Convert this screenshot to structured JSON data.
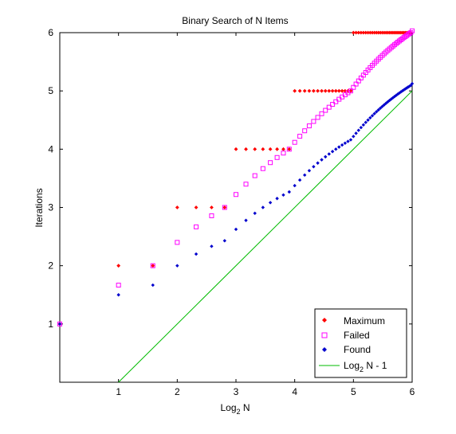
{
  "chart_data": {
    "type": "scatter",
    "title": "Binary Search of N Items",
    "xlabel_main": "Log",
    "xlabel_sub": "2",
    "xlabel_tail": " N",
    "ylabel": "Iterations",
    "xlim": [
      0,
      6
    ],
    "ylim": [
      0,
      6
    ],
    "xticks": [
      "1",
      "2",
      "3",
      "4",
      "5",
      "6"
    ],
    "yticks": [
      "1",
      "2",
      "3",
      "4",
      "5",
      "6"
    ],
    "grid": false,
    "legend_position": "bottom-right",
    "colors": {
      "maximum": "#ff0000",
      "failed": "#ff00ff",
      "found": "#0000cd",
      "line": "#00bb00"
    },
    "series": [
      {
        "key": "maximum",
        "name": "Maximum",
        "marker": "diamond",
        "formula": "floor(log2 N) + 1",
        "n_range": [
          1,
          64
        ]
      },
      {
        "key": "failed",
        "name": "Failed",
        "marker": "square-open",
        "formula": "average unsuccessful search iterations",
        "n_range": [
          1,
          64
        ]
      },
      {
        "key": "found",
        "name": "Found",
        "marker": "diamond-small",
        "formula": "average successful search iterations",
        "n_range": [
          1,
          64
        ]
      },
      {
        "key": "line",
        "name_main": "Log",
        "name_sub": "2",
        "name_tail": " N - 1",
        "marker": "line",
        "x": [
          1,
          6
        ],
        "y": [
          0,
          5
        ]
      }
    ]
  }
}
